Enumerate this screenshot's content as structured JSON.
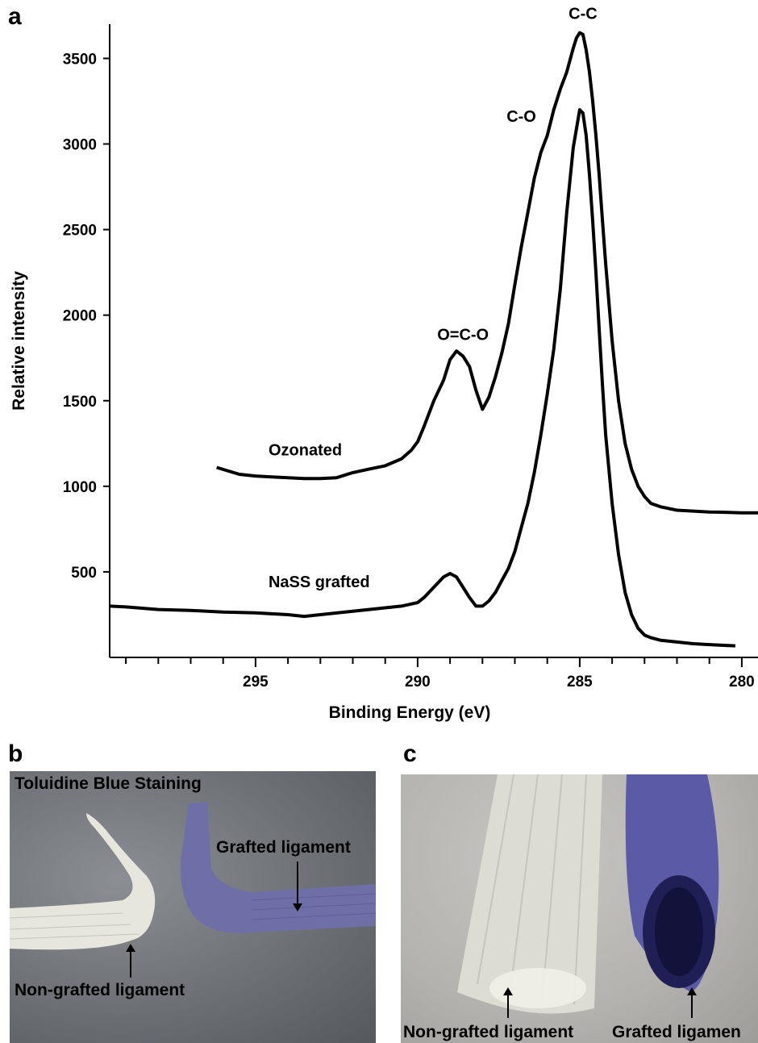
{
  "panel_labels": {
    "a": "a",
    "b": "b",
    "c": "c"
  },
  "chart_data": {
    "type": "line",
    "xlabel": "Binding Energy (eV)",
    "ylabel": "Relative intensity",
    "x_reversed": true,
    "xlim": [
      299.5,
      279.5
    ],
    "ylim": [
      0,
      3700
    ],
    "x_ticks_labeled": [
      295,
      290,
      285,
      280
    ],
    "x_ticks_minor": [
      299,
      298,
      297,
      296,
      294,
      293,
      292,
      291,
      289,
      288,
      287,
      286,
      284,
      283,
      282,
      281
    ],
    "y_ticks": [
      500,
      1000,
      1500,
      2000,
      2500,
      3000,
      3500
    ],
    "grid": false,
    "series": [
      {
        "name": "Ozonated",
        "color": "#000000",
        "x": [
          296.2,
          295.5,
          295.0,
          294.5,
          294.0,
          293.5,
          293.0,
          292.5,
          292.0,
          291.5,
          291.0,
          290.5,
          290.2,
          290.0,
          289.8,
          289.5,
          289.2,
          289.0,
          288.8,
          288.6,
          288.4,
          288.2,
          288.0,
          287.8,
          287.6,
          287.4,
          287.2,
          287.0,
          286.8,
          286.6,
          286.4,
          286.2,
          286.0,
          285.8,
          285.6,
          285.4,
          285.2,
          285.1,
          285.0,
          284.9,
          284.8,
          284.7,
          284.6,
          284.5,
          284.4,
          284.3,
          284.2,
          284.0,
          283.8,
          283.6,
          283.4,
          283.2,
          283.0,
          282.8,
          282.5,
          282.0,
          281.5,
          281.0,
          280.5,
          280.0,
          279.5
        ],
        "y": [
          1110,
          1070,
          1060,
          1055,
          1050,
          1045,
          1045,
          1050,
          1080,
          1100,
          1120,
          1160,
          1210,
          1260,
          1350,
          1500,
          1620,
          1740,
          1790,
          1760,
          1700,
          1560,
          1450,
          1520,
          1640,
          1780,
          1950,
          2180,
          2400,
          2600,
          2800,
          2950,
          3050,
          3200,
          3320,
          3420,
          3560,
          3620,
          3650,
          3640,
          3550,
          3420,
          3250,
          3050,
          2820,
          2560,
          2300,
          1850,
          1500,
          1250,
          1100,
          1000,
          940,
          900,
          880,
          860,
          855,
          850,
          848,
          845,
          845
        ]
      },
      {
        "name": "NaSS grafted",
        "color": "#000000",
        "x": [
          299.5,
          299.0,
          298.0,
          297.0,
          296.0,
          295.0,
          294.0,
          293.5,
          293.0,
          292.0,
          291.0,
          290.5,
          290.0,
          289.8,
          289.5,
          289.2,
          289.0,
          288.8,
          288.6,
          288.4,
          288.2,
          288.0,
          287.8,
          287.6,
          287.4,
          287.2,
          287.0,
          286.8,
          286.6,
          286.4,
          286.2,
          286.0,
          285.8,
          285.6,
          285.4,
          285.2,
          285.0,
          284.9,
          284.8,
          284.7,
          284.6,
          284.5,
          284.4,
          284.3,
          284.2,
          284.0,
          283.8,
          283.6,
          283.4,
          283.2,
          283.0,
          282.8,
          282.5,
          282.0,
          281.5,
          281.0,
          280.5,
          280.2
        ],
        "y": [
          300,
          295,
          280,
          275,
          265,
          260,
          250,
          240,
          250,
          270,
          290,
          300,
          320,
          350,
          410,
          470,
          490,
          470,
          410,
          350,
          300,
          300,
          330,
          380,
          450,
          520,
          620,
          760,
          900,
          1080,
          1300,
          1540,
          1800,
          2150,
          2600,
          2980,
          3200,
          3180,
          3050,
          2820,
          2550,
          2250,
          1920,
          1600,
          1300,
          900,
          600,
          380,
          250,
          170,
          130,
          115,
          100,
          90,
          80,
          75,
          70,
          68
        ]
      }
    ],
    "annotations": [
      {
        "text": "C-C",
        "x": 284.9,
        "y": 3730
      },
      {
        "text": "C-O",
        "x": 286.8,
        "y": 3130
      },
      {
        "text": "O=C-O",
        "x": 288.6,
        "y": 1855
      },
      {
        "text": "Ozonated",
        "x": 294.6,
        "y": 1180
      },
      {
        "text": "NaSS grafted",
        "x": 294.6,
        "y": 410
      }
    ]
  },
  "photo_b": {
    "title": "Toluidine Blue Staining",
    "label_grafted": "Grafted ligament",
    "label_nongrafted": "Non-grafted ligament",
    "colors": {
      "grafted": "#6f6fa8",
      "nongrafted": "#e6e6dc"
    }
  },
  "photo_c": {
    "label_nongrafted": "Non-grafted ligament",
    "label_grafted": "Grafted ligamen",
    "colors": {
      "grafted": "#5a5aa6",
      "nongrafted": "#dcdcd2"
    }
  }
}
